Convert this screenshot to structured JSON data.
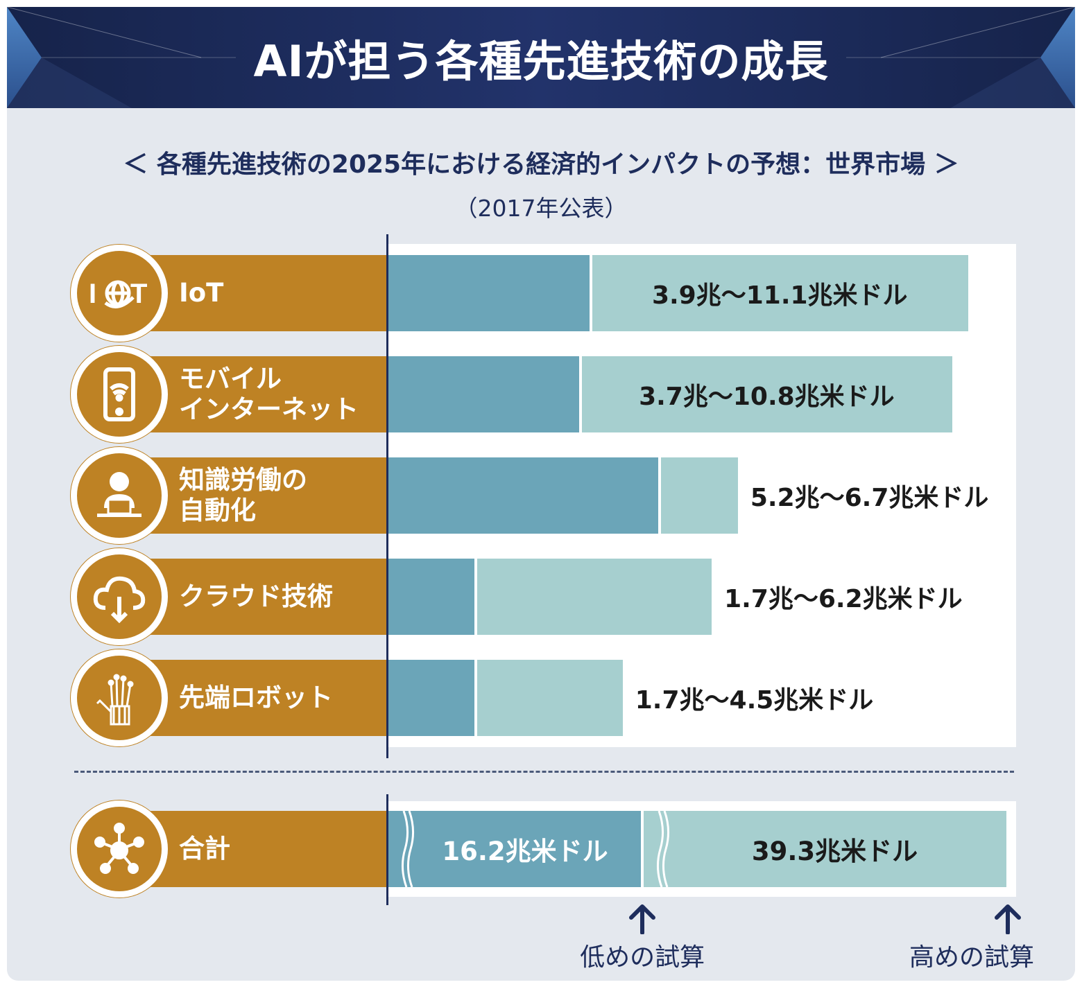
{
  "title": "AIが担う各種先進技術の成長",
  "subtitle": "＜ 各種先進技術の2025年における経済的インパクトの予想：世界市場 ＞",
  "published_note": "（2017年公表）",
  "colors": {
    "banner": "#1e2d5c",
    "label_band": "#be8224",
    "bar_low": "#6ba5b8",
    "bar_high": "#a6cfcf",
    "text_dark": "#1e2d5c"
  },
  "chart_data": {
    "type": "bar",
    "orientation": "horizontal",
    "stacked_range": true,
    "unit": "兆米ドル",
    "categories": [
      {
        "name": "IoT",
        "lines": [
          "IoT"
        ],
        "icon": "iot-globe-icon",
        "low": 3.9,
        "high": 11.1,
        "label": "3.9兆〜11.1兆米ドル"
      },
      {
        "name": "モバイルインターネット",
        "lines": [
          "モバイル",
          "インターネット"
        ],
        "icon": "smartphone-wifi-icon",
        "low": 3.7,
        "high": 10.8,
        "label": "3.7兆〜10.8兆米ドル"
      },
      {
        "name": "知識労働の自動化",
        "lines": [
          "知識労働の",
          "自動化"
        ],
        "icon": "office-worker-icon",
        "low": 5.2,
        "high": 6.7,
        "label": "5.2兆〜6.7兆米ドル"
      },
      {
        "name": "クラウド技術",
        "lines": [
          "クラウド技術"
        ],
        "icon": "cloud-download-icon",
        "low": 1.7,
        "high": 6.2,
        "label": "1.7兆〜6.2兆米ドル"
      },
      {
        "name": "先端ロボット",
        "lines": [
          "先端ロボット"
        ],
        "icon": "robot-hand-icon",
        "low": 1.7,
        "high": 4.5,
        "label": "1.7兆〜4.5兆米ドル"
      }
    ],
    "total": {
      "name": "合計",
      "icon": "network-hub-icon",
      "low": 16.2,
      "high": 39.3,
      "low_label": "16.2兆米ドル",
      "high_label": "39.3兆米ドル"
    },
    "low_marker_label": "低めの試算",
    "high_marker_label": "高めの試算"
  }
}
